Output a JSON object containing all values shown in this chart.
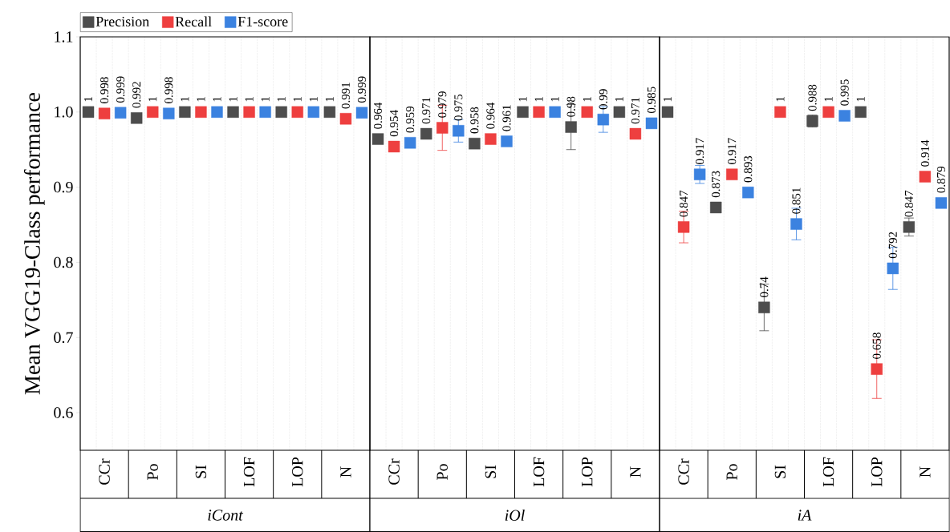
{
  "chart_data": [
    {
      "type": "scatter",
      "xlabel": "iCont",
      "ylabel": "Mean VGG19-Class performance",
      "categories": [
        "CCr",
        "Po",
        "SI",
        "LOF",
        "LOP",
        "N"
      ],
      "ylim": [
        0.55,
        1.1
      ],
      "yticks": [
        0.6,
        0.7,
        0.8,
        0.9,
        {
          "value": 1,
          "label": "1.0"
        },
        1.1
      ],
      "grid": "x",
      "legend": "top left",
      "marker": "square",
      "data_labels": true,
      "series": [
        {
          "name": "Precision",
          "color": "#4d4d4d",
          "values": [
            1,
            0.992,
            1,
            1,
            1,
            1
          ]
        },
        {
          "name": "Recall",
          "color": "#ee3f3f",
          "values": [
            0.998,
            1,
            1,
            1,
            1,
            0.991
          ]
        },
        {
          "name": "F1-score",
          "color": "#3b82e0",
          "values": [
            0.999,
            0.998,
            1,
            1,
            1,
            0.999
          ]
        }
      ]
    },
    {
      "type": "scatter",
      "xlabel": "iOl",
      "categories": [
        "CCr",
        "Po",
        "SI",
        "LOF",
        "LOP",
        "N"
      ],
      "ylim": [
        0.55,
        1.1
      ],
      "yticks": [
        0.6,
        0.7,
        0.8,
        0.9,
        1,
        1.1
      ],
      "tick_labels": "x",
      "grid": "x",
      "marker": "square",
      "data_labels": true,
      "series": [
        {
          "color": "#4d4d4d",
          "values": [
            0.964,
            0.971,
            0.958,
            1,
            0.98,
            1
          ],
          "errors": [
            null,
            null,
            null,
            null,
            0.03,
            null
          ]
        },
        {
          "color": "#ee3f3f",
          "values": [
            0.954,
            0.979,
            0.964,
            1,
            1,
            0.971
          ],
          "errors": [
            null,
            0.03,
            null,
            null,
            null,
            null
          ]
        },
        {
          "color": "#3b82e0",
          "values": [
            0.959,
            0.975,
            0.961,
            1,
            0.99,
            0.985
          ],
          "errors": [
            null,
            0.015,
            null,
            null,
            0.017,
            null
          ]
        }
      ]
    },
    {
      "type": "scatter",
      "xlabel": "iA",
      "categories": [
        "CCr",
        "Po",
        "SI",
        "LOF",
        "LOP",
        "N"
      ],
      "ylim": [
        0.55,
        1.1
      ],
      "yticks": [
        0.6,
        0.7,
        0.8,
        0.9,
        1,
        1.1
      ],
      "tick_labels": "x",
      "grid": "x",
      "marker": "square",
      "data_labels": true,
      "series": [
        {
          "color": "#4d4d4d",
          "values": [
            1,
            0.873,
            0.74,
            0.988,
            1,
            0.847
          ],
          "errors": [
            null,
            null,
            0.031,
            0.008,
            null,
            0.012
          ]
        },
        {
          "color": "#ee3f3f",
          "values": [
            0.847,
            0.917,
            1,
            1,
            0.658,
            0.914
          ],
          "errors": [
            0.021,
            null,
            null,
            null,
            0.039,
            null
          ]
        },
        {
          "color": "#3b82e0",
          "values": [
            0.917,
            0.893,
            0.851,
            0.995,
            0.792,
            0.879
          ],
          "errors": [
            0.012,
            null,
            0.021,
            null,
            0.028,
            null
          ]
        }
      ]
    }
  ]
}
